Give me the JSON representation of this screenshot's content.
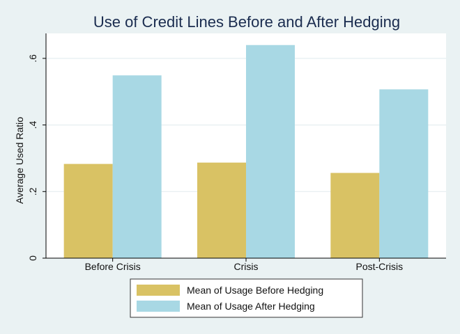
{
  "chart_data": {
    "type": "bar",
    "title": "Use of Credit Lines Before and After Hedging",
    "xlabel": "",
    "ylabel": "Average Used Ratio",
    "categories": [
      "Before Crisis",
      "Crisis",
      "Post-Crisis"
    ],
    "series": [
      {
        "name": "Mean of Usage Before Hedging",
        "values": [
          0.283,
          0.287,
          0.256
        ],
        "color": "#d9c264"
      },
      {
        "name": "Mean of Usage After Hedging",
        "values": [
          0.549,
          0.64,
          0.507
        ],
        "color": "#a8d8e4"
      }
    ],
    "ylim": [
      0,
      0.675
    ],
    "yticks": [
      0,
      0.2,
      0.4,
      0.6
    ],
    "ytick_labels": [
      "0",
      ".2",
      ".4",
      ".6"
    ],
    "grid": true,
    "legend_position": "bottom"
  }
}
